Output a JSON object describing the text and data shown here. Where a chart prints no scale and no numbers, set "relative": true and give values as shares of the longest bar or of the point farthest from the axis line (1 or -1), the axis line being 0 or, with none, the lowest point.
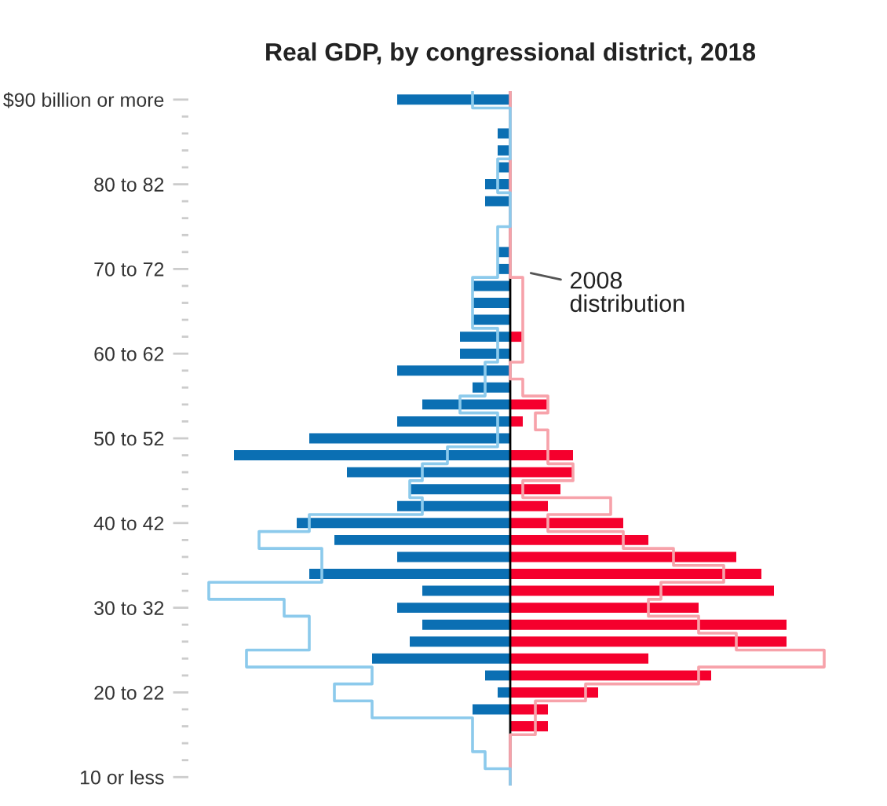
{
  "chart_data": {
    "type": "bar",
    "orientation": "horizontal",
    "relative": true,
    "title": "Real GDP, by congressional district, 2018",
    "categories": [
      "$90 billion or more",
      null,
      null,
      null,
      null,
      "80 to 82",
      null,
      null,
      null,
      null,
      "70 to 72",
      null,
      null,
      null,
      null,
      "60 to 62",
      null,
      null,
      null,
      null,
      "50 to 52",
      null,
      null,
      null,
      null,
      "40 to 42",
      null,
      null,
      null,
      null,
      "30 to 32",
      null,
      null,
      null,
      null,
      "20 to 22",
      null,
      null,
      null,
      null,
      "10 or less"
    ],
    "series": [
      {
        "color": "#0b6fb3",
        "values": [
          -0.36,
          0,
          -0.04,
          -0.04,
          -0.04,
          -0.08,
          -0.08,
          0,
          0,
          -0.04,
          -0.04,
          -0.12,
          -0.12,
          -0.12,
          -0.16,
          -0.16,
          -0.36,
          -0.12,
          -0.28,
          -0.36,
          -0.64,
          -0.88,
          -0.52,
          -0.32,
          -0.36,
          -0.68,
          -0.56,
          -0.36,
          -0.64,
          -0.28,
          -0.36,
          -0.28,
          -0.32,
          -0.44,
          -0.08,
          -0.04,
          -0.12,
          0,
          0,
          0,
          0
        ]
      },
      {
        "color": "#f5002d",
        "values": [
          0,
          0,
          0,
          0,
          0,
          0,
          0,
          0,
          0,
          0,
          0,
          0,
          0,
          0,
          0.04,
          0,
          0,
          0,
          0.12,
          0.04,
          0,
          0.2,
          0.2,
          0.16,
          0.12,
          0.36,
          0.44,
          0.72,
          0.8,
          0.84,
          0.6,
          0.88,
          0.88,
          0.44,
          0.64,
          0.28,
          0.12,
          0.12,
          0,
          0,
          0
        ]
      },
      {
        "type": "step",
        "color": "#8ccaec",
        "values": [
          -0.12,
          0,
          0,
          0,
          -0.04,
          -0.04,
          0,
          0,
          -0.04,
          -0.04,
          -0.04,
          -0.12,
          -0.12,
          -0.12,
          -0.04,
          -0.04,
          -0.08,
          -0.08,
          -0.16,
          -0.04,
          -0.04,
          -0.2,
          -0.28,
          -0.32,
          -0.28,
          -0.64,
          -0.8,
          -0.6,
          -0.6,
          -0.96,
          -0.72,
          -0.64,
          -0.64,
          -0.84,
          -0.44,
          -0.56,
          -0.44,
          -0.12,
          -0.12,
          -0.08,
          0
        ]
      },
      {
        "type": "step",
        "color": "#f7a2aa",
        "values": [
          0,
          0,
          0,
          0,
          0,
          0,
          0,
          0,
          0,
          0,
          0,
          0.04,
          0.04,
          0.04,
          0.04,
          0.04,
          0,
          0.04,
          0.12,
          0.08,
          0.12,
          0.12,
          0.2,
          0.04,
          0.32,
          0.12,
          0.36,
          0.52,
          0.68,
          0.48,
          0.44,
          0.6,
          0.72,
          1.0,
          0.6,
          0.24,
          0.08,
          0.08,
          0,
          0,
          0
        ]
      }
    ],
    "annotations": [
      "2008\ndistribution"
    ]
  }
}
